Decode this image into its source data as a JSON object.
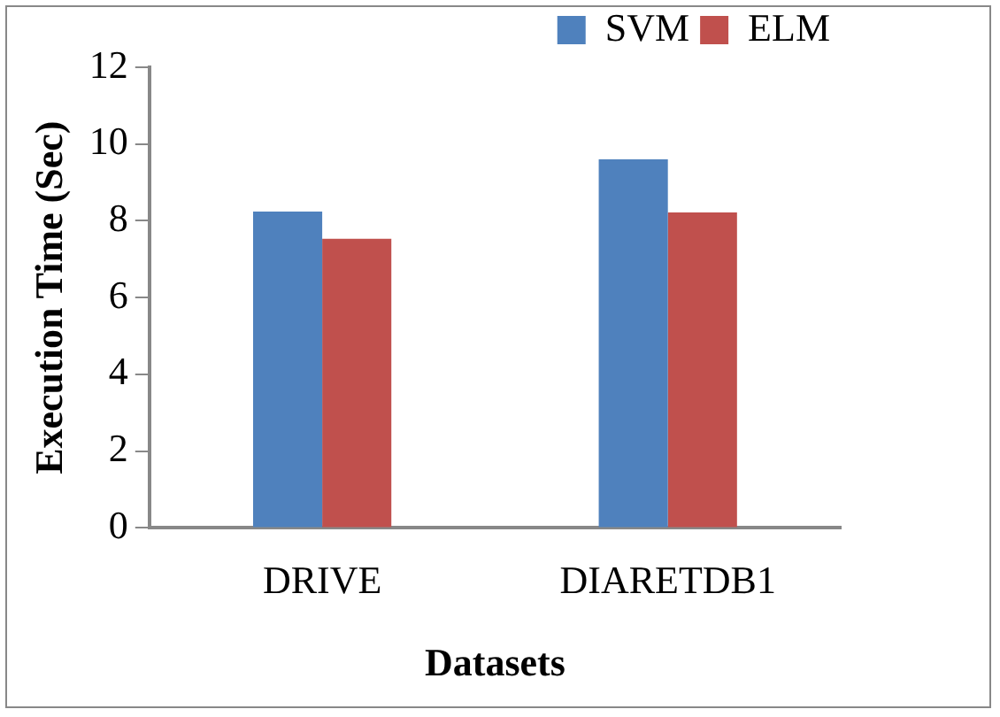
{
  "chart_data": {
    "type": "bar",
    "xlabel": "Datasets",
    "ylabel": "Execution Time (Sec)",
    "categories": [
      "DRIVE",
      "DIARETDB1"
    ],
    "series": [
      {
        "name": "SVM",
        "color": "#4f81bd",
        "values": [
          8.24,
          9.6
        ]
      },
      {
        "name": "ELM",
        "color": "#c0504d",
        "values": [
          7.53,
          8.22
        ]
      }
    ],
    "ylim": [
      0,
      12
    ],
    "yticks": [
      0,
      2,
      4,
      6,
      8,
      10,
      12
    ],
    "grid": false,
    "legend": "top right"
  }
}
